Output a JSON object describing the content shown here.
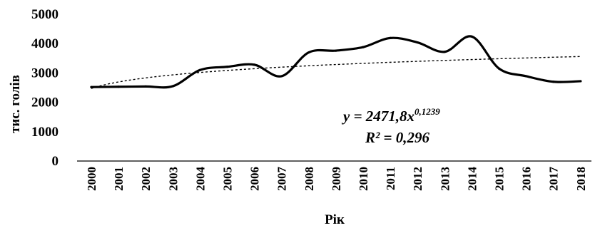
{
  "chart_data": {
    "type": "line",
    "x": [
      "2000",
      "2001",
      "2002",
      "2003",
      "2004",
      "2005",
      "2006",
      "2007",
      "2008",
      "2009",
      "2010",
      "2011",
      "2012",
      "2013",
      "2014",
      "2015",
      "2016",
      "2017",
      "2018"
    ],
    "series": [
      {
        "values": [
          2520,
          2530,
          2540,
          2550,
          3100,
          3210,
          3280,
          2890,
          3700,
          3760,
          3880,
          4190,
          4040,
          3720,
          4240,
          3150,
          2890,
          2700,
          2720
        ],
        "color": "#000000",
        "style": "solid"
      }
    ],
    "trendline": {
      "type": "power",
      "a": 2471.8,
      "b": 0.1239,
      "color": "#000000",
      "style": "dashed"
    },
    "xlabel": "Рік",
    "ylabel": "тис. голів",
    "ylim": [
      0,
      5000
    ],
    "yticks": [
      "0",
      "1000",
      "2000",
      "3000",
      "4000",
      "5000"
    ],
    "grid": false,
    "annotations": {
      "equation_main": "y = 2471,8x",
      "equation_exp": "0,1239",
      "r2": "R² = 0,296"
    }
  }
}
